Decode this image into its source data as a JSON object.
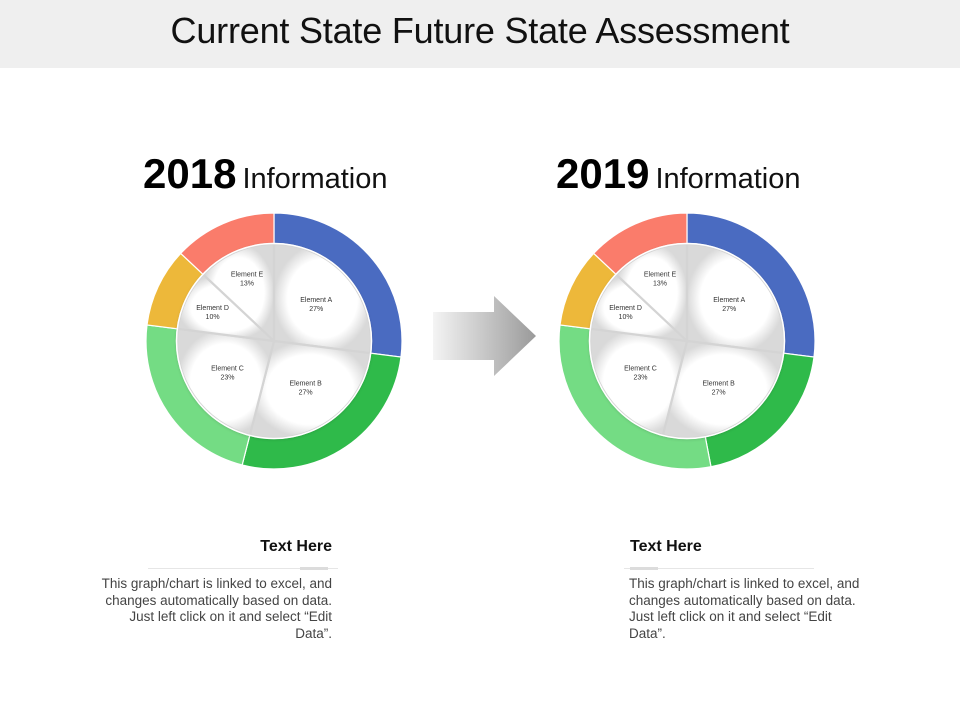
{
  "page": {
    "title": "Current State Future State Assessment"
  },
  "arrow_colors": {
    "from": "#f4f4f4",
    "to": "#9a9a9a"
  },
  "chart_data": [
    {
      "type": "pie",
      "heading_year": "2018",
      "heading_text": "Information",
      "start_angle_deg": 0,
      "outer_ring": [
        {
          "color": "#4a6bc1",
          "value": 27
        },
        {
          "color": "#2fba4a",
          "value": 27
        },
        {
          "color": "#74dc84",
          "value": 23
        },
        {
          "color": "#edb83a",
          "value": 10
        },
        {
          "color": "#fa7c6b",
          "value": 13
        }
      ],
      "inner_slices": [
        {
          "label": "Element A",
          "pct": "27%",
          "value": 27
        },
        {
          "label": "Element B",
          "pct": "27%",
          "value": 27
        },
        {
          "label": "Element C",
          "pct": "23%",
          "value": 23
        },
        {
          "label": "Element D",
          "pct": "10%",
          "value": 10
        },
        {
          "label": "Element E",
          "pct": "13%",
          "value": 13
        }
      ]
    },
    {
      "type": "pie",
      "heading_year": "2019",
      "heading_text": "Information",
      "start_angle_deg": 0,
      "outer_ring": [
        {
          "color": "#4a6bc1",
          "value": 27
        },
        {
          "color": "#2fba4a",
          "value": 20
        },
        {
          "color": "#74dc84",
          "value": 30
        },
        {
          "color": "#edb83a",
          "value": 10
        },
        {
          "color": "#fa7c6b",
          "value": 13
        }
      ],
      "inner_slices": [
        {
          "label": "Element A",
          "pct": "27%",
          "value": 27
        },
        {
          "label": "Element B",
          "pct": "27%",
          "value": 27
        },
        {
          "label": "Element C",
          "pct": "23%",
          "value": 23
        },
        {
          "label": "Element D",
          "pct": "10%",
          "value": 10
        },
        {
          "label": "Element E",
          "pct": "13%",
          "value": 13
        }
      ]
    }
  ],
  "notes": [
    {
      "title": "Text Here",
      "body": "This graph/chart is linked to excel, and changes automatically based on data. Just left click on it and select “Edit Data”."
    },
    {
      "title": "Text Here",
      "body": "This graph/chart is linked to excel, and changes automatically based on data. Just left click on it and select “Edit Data”."
    }
  ]
}
